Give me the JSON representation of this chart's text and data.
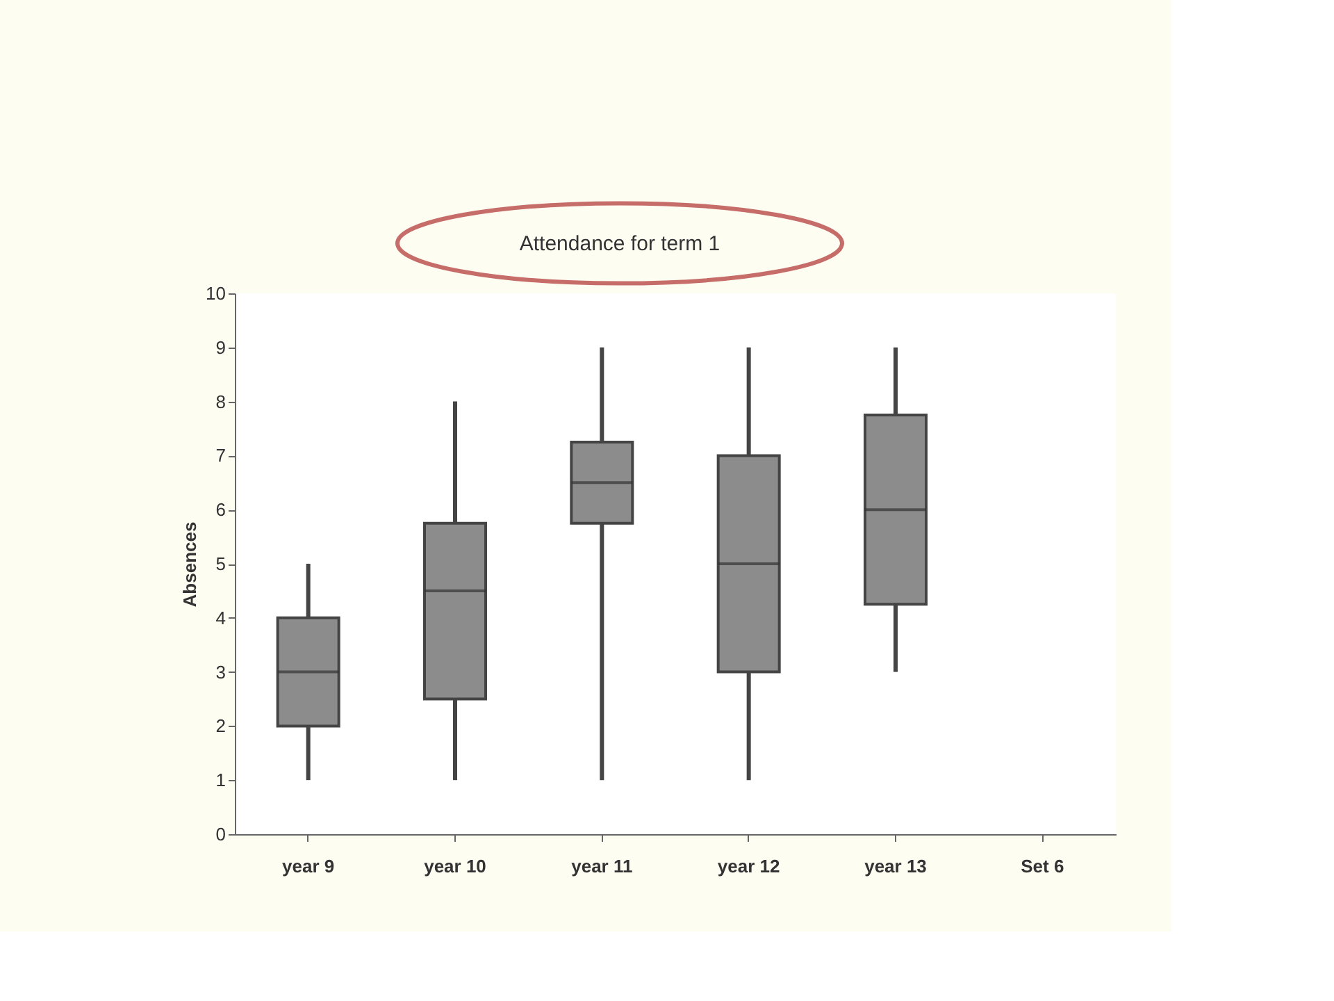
{
  "chart_data": {
    "type": "box",
    "title": "Attendance for term 1",
    "ylabel": "Absences",
    "categories": [
      "year 9",
      "year 10",
      "year 11",
      "year 12",
      "year 13",
      "Set 6"
    ],
    "boxes": [
      {
        "low": 1,
        "q1": 2,
        "median": 3,
        "q3": 4,
        "high": 5
      },
      {
        "low": 1,
        "q1": 2.5,
        "median": 4.5,
        "q3": 5.75,
        "high": 8
      },
      {
        "low": 1,
        "q1": 5.75,
        "median": 6.5,
        "q3": 7.25,
        "high": 9
      },
      {
        "low": 1,
        "q1": 3,
        "median": 5,
        "q3": 7,
        "high": 9
      },
      {
        "low": 3,
        "q1": 4.25,
        "median": 6,
        "q3": 7.75,
        "high": 9
      },
      null
    ],
    "color": "#8c8c8c",
    "ylim": [
      0,
      10
    ],
    "yticks": [
      0,
      1,
      2,
      3,
      4,
      5,
      6,
      7,
      8,
      9,
      10
    ],
    "grid": false
  }
}
